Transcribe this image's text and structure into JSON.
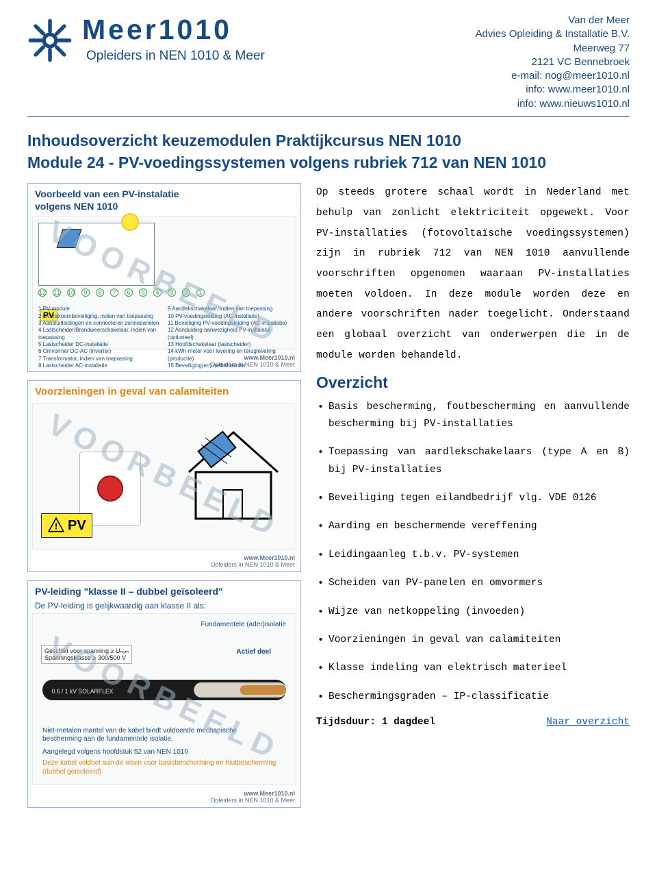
{
  "brand": {
    "title": "Meer1010",
    "subtitle": "Opleiders in NEN 1010 & Meer"
  },
  "contact": {
    "line1": "Van der Meer",
    "line2": "Advies Opleiding & Installatie B.V.",
    "line3": "Meerweg 77",
    "line4": "2121 VC  Bennebroek",
    "line5": "e-mail: nog@meer1010.nl",
    "line6": "info: www.meer1010.nl",
    "line7": "info: www.nieuws1010.nl"
  },
  "title": {
    "line1": "Inhoudsoverzicht keuzemodulen Praktijkcursus NEN 1010",
    "line2": "Module 24  -  PV-voedingssystemen volgens rubriek 712 van NEN 1010"
  },
  "intro": "Op steeds grotere schaal wordt in Nederland met behulp van zonlicht elektriciteit opgewekt. Voor PV-installaties (fotovoltaïsche voedings­systemen) zijn in rubriek 712 van NEN 1010 aanvullende voorschriften opgenomen waaraan PV-installaties moeten voldoen. In deze module worden deze en andere voorschriften nader toegelicht. Onderstaand een globaal overzicht van onderwerpen die in de module worden behandeld.",
  "overview_title": "Overzicht",
  "overview": [
    "Basis bescherming, foutbescherming en aanvullende bescherming bij PV-installaties",
    "Toepassing van aardlekschakelaars (type A en B) bij PV-installaties",
    "Beveiliging tegen eilandbedrijf vlg. VDE 0126",
    "Aarding en beschermende vereffening",
    "Leidingaanleg t.b.v. PV-systemen",
    "Scheiden van PV-panelen en omvormers",
    "Wijze van netkoppeling (invoeden)",
    "Voorzieningen in geval van calamiteiten",
    "Klasse indeling van elektrisch materieel",
    "Beschermingsgraden – IP-classificatie"
  ],
  "duration_label": "Tijdsduur: 1 dagdeel",
  "nav_link": "Naar overzicht",
  "fig1": {
    "title_l1": "Voorbeeld van een PV-instalatie",
    "title_l2": "volgens NEN 1010",
    "pv_label": "PV",
    "watermark": "VOORBEELD",
    "legend": [
      "1  PV-module",
      "2  Overstroombeveiliging, indien van toepassing",
      "3  Aansluitleidingen en connectoren zonnepanelen",
      "4  Lastscheider/Brandweerschakelaar, indien van toepassing",
      "5  Lastscheider DC-installatie",
      "6  Omvormer DC-AC (inverter)",
      "7  Transformator, indien van toepassing",
      "8  Lastscheider AC-installatie",
      "9  Aardlekschakelaar, indien van toepassing",
      "10 PV-voedingsleiding (AC-installatie)",
      "11 Beveiliging PV-voedingsleiding (AC-installatie)",
      "12 Aanduiding aanwezigheid PV-installatie (optioneel)",
      "13 Hoofdschakelaar (lastscheider)",
      "14 kWh-meter voor levering en teruglevering (productie)",
      "15 Beveiliging(en) netbeheerder"
    ],
    "footer_left": "",
    "footer_right_1": "www.Meer1010.nl",
    "footer_right_2": "Opleiders in NEN 1010 & Meer"
  },
  "fig2": {
    "title": "Voorzieningen in geval van calamiteiten",
    "watermark": "VOORBEELD",
    "pv_label": "PV",
    "footer_right_1": "www.Meer1010.nl",
    "footer_right_2": "Opleiders in NEN 1010 & Meer"
  },
  "fig3": {
    "title": "PV-leiding \"klasse II – dubbel geïsoleerd\"",
    "subtitle": "De PV-leiding is gelijkwaardig aan klasse II als:",
    "watermark": "VOORBEELD",
    "annot_fund": "Fundamentele (ader)isolatie",
    "annot_actief": "Actief deel",
    "tag_l1": "Geschikt voor spanning ≥ Uₙₒₘ",
    "tag_l2": "Spanningsklasse ≥ 300/500 V",
    "tag_l3": "0.6 / 1 kV  SOLARFLEX",
    "bottom_blue_l1": "Niet-metalen mantel van de kabel biedt voldoende mechanische",
    "bottom_blue_l2": "bescherming aan de fundamentele isolatie.",
    "bottom_blue_l3": "Aangelegd volgens hoofdstuk 52 van NEN 1010",
    "bottom_orange": "Deze kabel voldoet aan de eisen voor basisbescherming en foutbescherming (dubbel geïsoleerd)",
    "footer_right_1": "www.Meer1010.nl",
    "footer_right_2": "Opleiders in NEN 1010 & Meer"
  },
  "colors": {
    "primary": "#174a84",
    "orange": "#e18614",
    "link": "#1155cc",
    "yellow": "#ffe93b",
    "red": "#d82a2a"
  }
}
